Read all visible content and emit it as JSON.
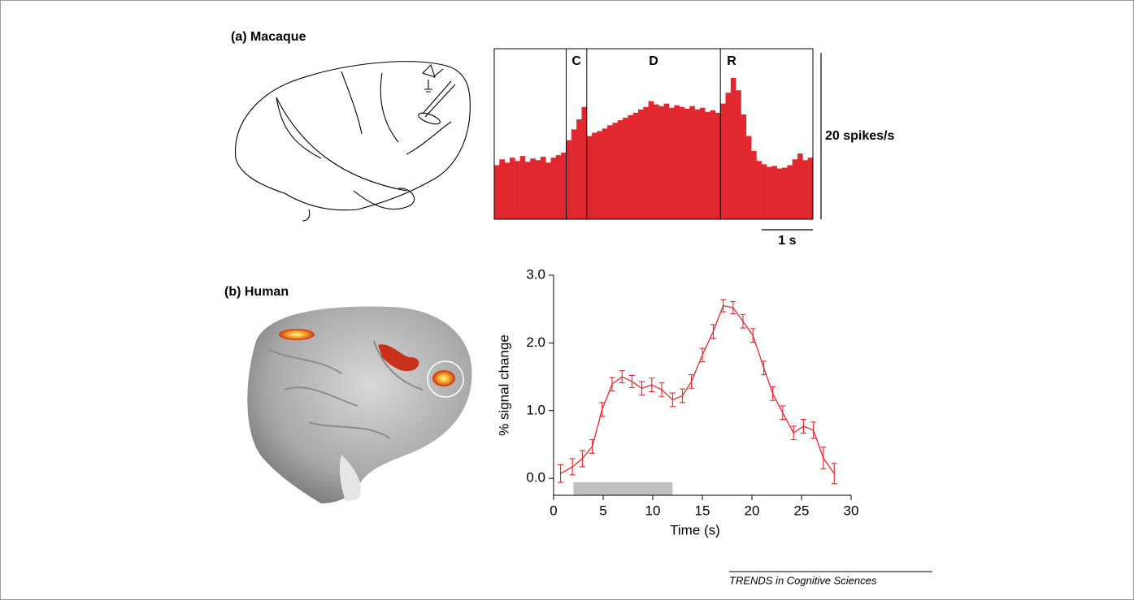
{
  "panels": [
    {
      "label": "(a) Macaque"
    },
    {
      "label": "(b) Human"
    }
  ],
  "credit": "TRENDS in Cognitive Sciences",
  "chart_data": [
    {
      "type": "histogram",
      "color": "#e0282e",
      "bins": [
        0,
        0.1,
        0.2,
        0.3,
        0.4,
        0.5,
        0.6,
        0.7,
        0.8,
        0.9,
        1.0,
        1.1,
        1.2,
        1.3,
        1.4,
        1.5,
        1.6,
        1.7,
        1.8,
        1.9,
        2.0,
        2.1,
        2.2,
        2.3,
        2.4,
        2.5,
        2.6,
        2.7,
        2.8,
        2.9,
        3.0,
        3.1,
        3.2,
        3.3,
        3.4,
        3.5,
        3.6,
        3.7,
        3.8,
        3.9,
        4.0,
        4.1,
        4.2,
        4.3,
        4.4,
        4.5,
        4.6,
        4.7,
        4.8,
        4.9,
        5.0,
        5.1,
        5.2,
        5.3,
        5.4,
        5.5,
        5.6,
        5.7,
        5.8,
        5.9,
        6.0,
        6.1,
        6.2
      ],
      "values": [
        6.5,
        7.2,
        6.8,
        7.4,
        7.0,
        7.6,
        6.9,
        7.3,
        7.1,
        7.5,
        6.8,
        7.4,
        7.7,
        8.0,
        9.5,
        10.8,
        12.0,
        13.5,
        10.0,
        10.4,
        10.6,
        10.9,
        11.3,
        11.6,
        11.9,
        12.2,
        12.5,
        12.8,
        13.2,
        13.5,
        14.2,
        13.8,
        13.6,
        13.9,
        13.4,
        13.7,
        13.5,
        13.3,
        13.6,
        13.2,
        13.4,
        12.9,
        13.1,
        12.8,
        13.9,
        15.2,
        17.0,
        15.5,
        12.6,
        10.0,
        8.2,
        7.0,
        6.6,
        6.3,
        6.4,
        6.1,
        6.2,
        6.5,
        7.2,
        7.9,
        7.1,
        7.4
      ],
      "xlim": [
        0,
        6.2
      ],
      "ylim": [
        0,
        20.5
      ],
      "epochs": [
        {
          "label": "C",
          "start": 1.4,
          "end": 1.8
        },
        {
          "label": "D",
          "start": 1.8,
          "end": 4.4
        },
        {
          "label": "R",
          "start": 4.4,
          "end": 6.2
        }
      ],
      "scale_bars": [
        {
          "axis": "y",
          "value": 20,
          "label": "20 spikes/s"
        },
        {
          "axis": "x",
          "value": 1,
          "label": "1 s"
        }
      ]
    },
    {
      "type": "line",
      "xlabel": "Time (s)",
      "ylabel": "% signal change",
      "x": [
        0.7,
        1.9,
        2.9,
        3.9,
        4.9,
        5.9,
        6.9,
        7.9,
        8.9,
        9.9,
        10.9,
        12.0,
        13.0,
        13.9,
        15.0,
        16.1,
        17.1,
        18.1,
        19.1,
        20.1,
        21.2,
        22.1,
        23.1,
        24.2,
        25.2,
        26.2,
        27.2,
        28.3
      ],
      "series": [
        {
          "color": "#e0282e",
          "values": [
            0.07,
            0.17,
            0.29,
            0.47,
            1.02,
            1.39,
            1.5,
            1.43,
            1.33,
            1.38,
            1.31,
            1.16,
            1.22,
            1.43,
            1.82,
            2.17,
            2.55,
            2.52,
            2.32,
            2.11,
            1.63,
            1.25,
            0.97,
            0.67,
            0.77,
            0.71,
            0.3,
            0.07
          ],
          "errors": [
            0.13,
            0.12,
            0.12,
            0.1,
            0.1,
            0.1,
            0.09,
            0.09,
            0.1,
            0.1,
            0.1,
            0.1,
            0.1,
            0.1,
            0.1,
            0.1,
            0.09,
            0.09,
            0.1,
            0.1,
            0.1,
            0.1,
            0.1,
            0.1,
            0.1,
            0.12,
            0.16,
            0.15
          ]
        }
      ],
      "stimulus": {
        "start": 2,
        "end": 12,
        "color": "#c0c0c0"
      },
      "xlim": [
        0,
        30
      ],
      "ylim": [
        -0.25,
        3.0
      ],
      "xticks": [
        0,
        5,
        10,
        15,
        20,
        25,
        30
      ],
      "yticks": [
        {
          "value": 0,
          "label": "0.0"
        },
        {
          "value": 1,
          "label": "1.0"
        },
        {
          "value": 2,
          "label": "2.0"
        },
        {
          "value": 3,
          "label": "3.0"
        }
      ]
    }
  ]
}
